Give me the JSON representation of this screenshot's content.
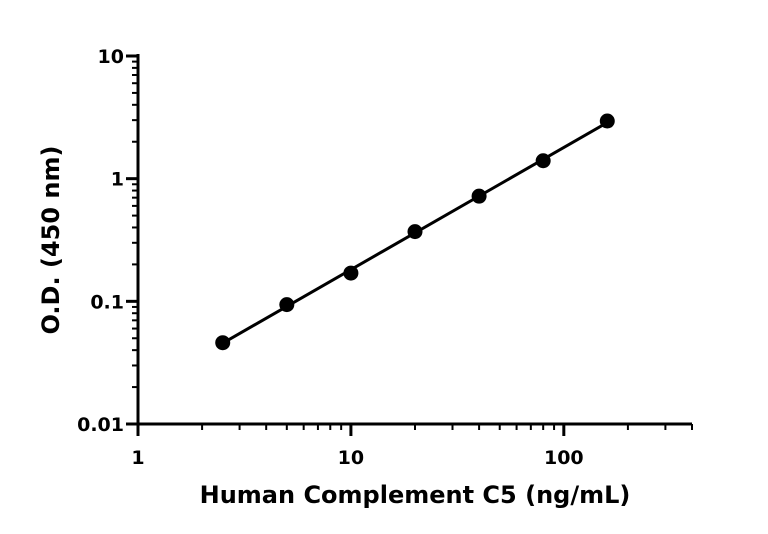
{
  "chart_data": {
    "type": "scatter",
    "title": "",
    "xlabel": "Human Complement C5 (ng/mL)",
    "ylabel": "O.D. (450 nm)",
    "x_scale": "log",
    "y_scale": "log",
    "xlim": [
      1,
      400
    ],
    "ylim": [
      0.01,
      10
    ],
    "x_ticks": [
      1,
      10,
      100
    ],
    "x_tick_labels": [
      "1",
      "10",
      "100"
    ],
    "y_ticks": [
      0.01,
      0.1,
      1,
      10
    ],
    "y_tick_labels": [
      "0.01",
      "0.1",
      "1",
      "10"
    ],
    "grid": false,
    "fit_line": true,
    "series": [
      {
        "x": [
          2.5,
          5,
          10,
          20,
          40,
          80,
          160
        ],
        "y": [
          0.046,
          0.094,
          0.17,
          0.37,
          0.72,
          1.4,
          2.95
        ]
      }
    ]
  }
}
